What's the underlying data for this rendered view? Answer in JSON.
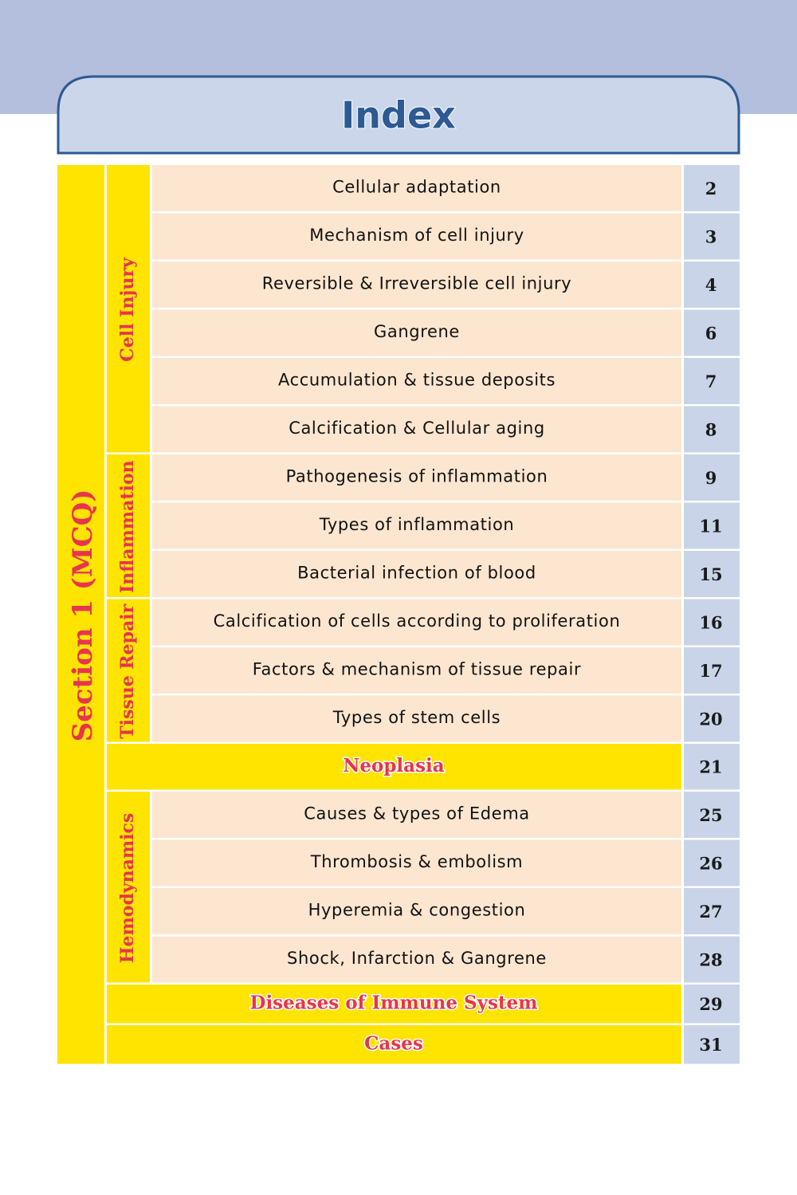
{
  "title": "Index",
  "section": "Section 1 (MCQ)",
  "blocks": [
    {
      "label": "Cell Injury",
      "entries": [
        {
          "topic": "Cellular adaptation",
          "page": 2
        },
        {
          "topic": "Mechanism of cell injury",
          "page": 3
        },
        {
          "topic": "Reversible & Irreversible cell injury",
          "page": 4
        },
        {
          "topic": "Gangrene",
          "page": 6
        },
        {
          "topic": "Accumulation & tissue deposits",
          "page": 7
        },
        {
          "topic": "Calcification & Cellular aging",
          "page": 8
        }
      ]
    },
    {
      "label": "Inflammation",
      "entries": [
        {
          "topic": "Pathogenesis of inflammation",
          "page": 9
        },
        {
          "topic": "Types of inflammation",
          "page": 11
        },
        {
          "topic": "Bacterial infection of blood",
          "page": 15
        }
      ]
    },
    {
      "label": "Tissue Repair",
      "entries": [
        {
          "topic": "Calcification of cells according to proliferation",
          "page": 16
        },
        {
          "topic": "Factors & mechanism of tissue repair",
          "page": 17
        },
        {
          "topic": "Types of stem cells",
          "page": 20
        }
      ]
    },
    {
      "heading": "Neoplasia",
      "page": 21
    },
    {
      "label": "Hemodynamics",
      "entries": [
        {
          "topic": "Causes & types of Edema",
          "page": 25
        },
        {
          "topic": "Thrombosis & embolism",
          "page": 26
        },
        {
          "topic": "Hyperemia & congestion",
          "page": 27
        },
        {
          "topic": "Shock, Infarction & Gangrene",
          "page": 28
        }
      ]
    },
    {
      "heading": "Diseases of Immune System",
      "page": 29
    },
    {
      "heading": "Cases",
      "page": 31
    }
  ]
}
